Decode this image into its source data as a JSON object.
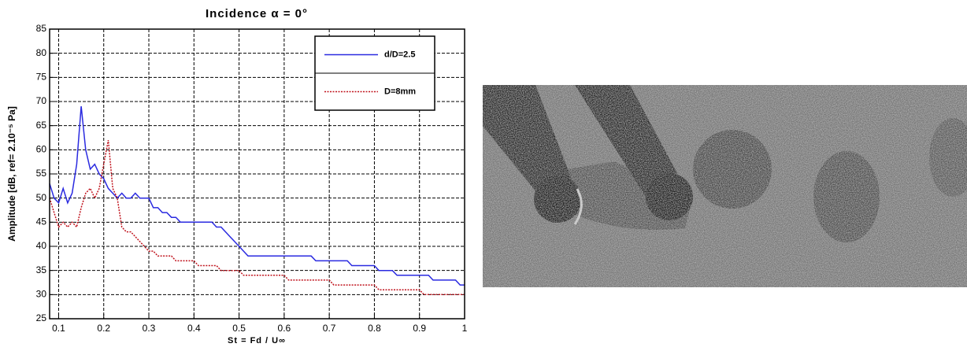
{
  "chart_data": {
    "type": "line",
    "title": "Incidence  α = 0°",
    "x_label": "St = Fd / U∞",
    "y_label": "Amplitude [dB, ref= 2.10⁻⁵ Pa]",
    "x": [
      0.08,
      0.09,
      0.1,
      0.11,
      0.12,
      0.13,
      0.14,
      0.15,
      0.16,
      0.17,
      0.18,
      0.19,
      0.2,
      0.21,
      0.22,
      0.23,
      0.24,
      0.25,
      0.26,
      0.27,
      0.28,
      0.29,
      0.3,
      0.31,
      0.32,
      0.33,
      0.34,
      0.35,
      0.36,
      0.37,
      0.38,
      0.39,
      0.4,
      0.41,
      0.42,
      0.43,
      0.44,
      0.45,
      0.46,
      0.47,
      0.48,
      0.49,
      0.5,
      0.51,
      0.52,
      0.53,
      0.54,
      0.55,
      0.56,
      0.57,
      0.58,
      0.59,
      0.6,
      0.61,
      0.62,
      0.63,
      0.64,
      0.65,
      0.66,
      0.67,
      0.68,
      0.69,
      0.7,
      0.71,
      0.72,
      0.73,
      0.74,
      0.75,
      0.76,
      0.77,
      0.78,
      0.79,
      0.8,
      0.81,
      0.82,
      0.83,
      0.84,
      0.85,
      0.86,
      0.87,
      0.88,
      0.89,
      0.9,
      0.91,
      0.92,
      0.93,
      0.94,
      0.95,
      0.96,
      0.97,
      0.98,
      0.99,
      1.0
    ],
    "series": [
      {
        "name": "d/D=2.5",
        "color": "#2a2ae0",
        "dash": false,
        "values": [
          53,
          50,
          49,
          52,
          49,
          51,
          57,
          69,
          60,
          56,
          57,
          55,
          54,
          52,
          51,
          50,
          51,
          50,
          50,
          51,
          50,
          50,
          50,
          48,
          48,
          47,
          47,
          46,
          46,
          45,
          45,
          45,
          45,
          45,
          45,
          45,
          45,
          44,
          44,
          43,
          42,
          41,
          40,
          39,
          38,
          38,
          38,
          38,
          38,
          38,
          38,
          38,
          38,
          38,
          38,
          38,
          38,
          38,
          38,
          37,
          37,
          37,
          37,
          37,
          37,
          37,
          37,
          36,
          36,
          36,
          36,
          36,
          36,
          35,
          35,
          35,
          35,
          34,
          34,
          34,
          34,
          34,
          34,
          34,
          34,
          33,
          33,
          33,
          33,
          33,
          33,
          32,
          32
        ]
      },
      {
        "name": "D=8mm",
        "color": "#c0141e",
        "dash": true,
        "values": [
          50,
          47,
          44,
          45,
          44,
          45,
          44,
          48,
          51,
          52,
          50,
          52,
          57,
          62,
          52,
          50,
          44,
          43,
          43,
          42,
          41,
          40,
          39,
          39,
          38,
          38,
          38,
          38,
          37,
          37,
          37,
          37,
          37,
          36,
          36,
          36,
          36,
          36,
          35,
          35,
          35,
          35,
          35,
          34,
          34,
          34,
          34,
          34,
          34,
          34,
          34,
          34,
          34,
          33,
          33,
          33,
          33,
          33,
          33,
          33,
          33,
          33,
          33,
          32,
          32,
          32,
          32,
          32,
          32,
          32,
          32,
          32,
          32,
          31,
          31,
          31,
          31,
          31,
          31,
          31,
          31,
          31,
          31,
          30,
          30,
          30,
          30,
          30,
          30,
          30,
          30,
          30,
          30
        ]
      }
    ],
    "xlim": [
      0.08,
      1.0
    ],
    "ylim": [
      25,
      85
    ],
    "xticks": [
      0.1,
      0.2,
      0.3,
      0.4,
      0.5,
      0.6,
      0.7,
      0.8,
      0.9,
      1
    ],
    "yticks": [
      25,
      30,
      35,
      40,
      45,
      50,
      55,
      60,
      65,
      70,
      75,
      80,
      85
    ],
    "grid": true,
    "legend": "upper right"
  }
}
